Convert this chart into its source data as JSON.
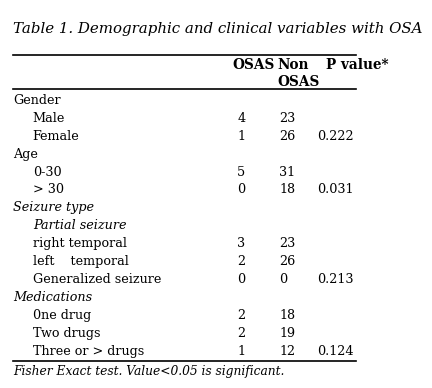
{
  "title": "Table 1. Demographic and clinical variables with OSA",
  "footnote": "Fisher Exact test. Value<0.05 is significant.",
  "col_headers": [
    "",
    "OSAS",
    "Non\nOSAS",
    "P value*"
  ],
  "rows": [
    {
      "label": "Gender",
      "indent": 0,
      "italic": false,
      "osas": "",
      "non_osas": "",
      "p": ""
    },
    {
      "label": "Male",
      "indent": 1,
      "italic": false,
      "osas": "4",
      "non_osas": "23",
      "p": ""
    },
    {
      "label": "Female",
      "indent": 1,
      "italic": false,
      "osas": "1",
      "non_osas": "26",
      "p": "0.222"
    },
    {
      "label": "Age",
      "indent": 0,
      "italic": false,
      "osas": "",
      "non_osas": "",
      "p": ""
    },
    {
      "label": "0-30",
      "indent": 1,
      "italic": false,
      "osas": "5",
      "non_osas": "31",
      "p": ""
    },
    {
      "label": "> 30",
      "indent": 1,
      "italic": false,
      "osas": "0",
      "non_osas": "18",
      "p": "0.031"
    },
    {
      "label": "Seizure type",
      "indent": 0,
      "italic": true,
      "osas": "",
      "non_osas": "",
      "p": ""
    },
    {
      "label": "Partial seizure",
      "indent": 1,
      "italic": true,
      "osas": "",
      "non_osas": "",
      "p": ""
    },
    {
      "label": "right temporal",
      "indent": 1,
      "italic": false,
      "osas": "3",
      "non_osas": "23",
      "p": ""
    },
    {
      "label": "left    temporal",
      "indent": 1,
      "italic": false,
      "osas": "2",
      "non_osas": "26",
      "p": ""
    },
    {
      "label": "Generalized seizure",
      "indent": 1,
      "italic": false,
      "osas": "0",
      "non_osas": "0",
      "p": "0.213"
    },
    {
      "label": "Medications",
      "indent": 0,
      "italic": true,
      "osas": "",
      "non_osas": "",
      "p": ""
    },
    {
      "label": "0ne drug",
      "indent": 1,
      "italic": false,
      "osas": "2",
      "non_osas": "18",
      "p": ""
    },
    {
      "label": "Two drugs",
      "indent": 1,
      "italic": false,
      "osas": "2",
      "non_osas": "19",
      "p": ""
    },
    {
      "label": "Three or > drugs",
      "indent": 1,
      "italic": false,
      "osas": "1",
      "non_osas": "12",
      "p": "0.124"
    }
  ],
  "bg_color": "#ffffff",
  "text_color": "#000000",
  "line_color": "#000000",
  "font_size": 9.2,
  "title_font_size": 10.8,
  "footnote_font_size": 8.8,
  "header_font_size": 9.8
}
